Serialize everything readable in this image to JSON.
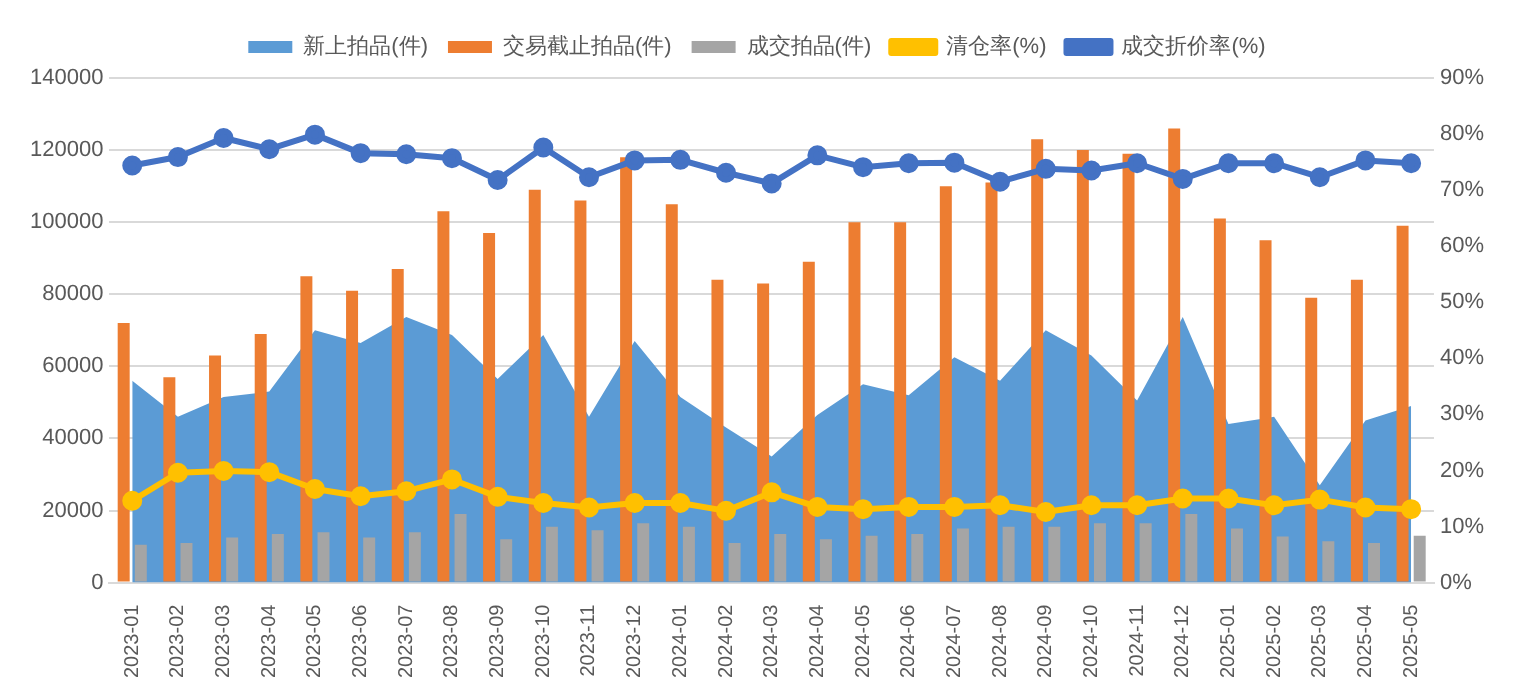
{
  "chart_data": {
    "type": "bar",
    "categories": [
      "2023-01",
      "2023-02",
      "2023-03",
      "2023-04",
      "2023-05",
      "2023-06",
      "2023-07",
      "2023-08",
      "2023-09",
      "2023-10",
      "2023-11",
      "2023-12",
      "2024-01",
      "2024-02",
      "2024-03",
      "2024-04",
      "2024-05",
      "2024-06",
      "2024-07",
      "2024-08",
      "2024-09",
      "2024-10",
      "2024-11",
      "2024-12",
      "2025-01",
      "2025-02",
      "2025-03",
      "2025-04",
      "2025-05"
    ],
    "series": [
      {
        "name": "新上拍品(件)",
        "type": "area",
        "color": "#5b9bd5",
        "marker": "none",
        "values": [
          56000,
          46000,
          51500,
          53000,
          70000,
          66500,
          73700,
          68700,
          56500,
          68700,
          46000,
          67000,
          51500,
          43000,
          35000,
          46500,
          55000,
          52000,
          62500,
          56000,
          70000,
          63000,
          50500,
          73700,
          44000,
          46000,
          27000,
          45000,
          49000
        ]
      },
      {
        "name": "交易截止拍品(件)",
        "color": "#ed7d31",
        "values": [
          72000,
          57000,
          63000,
          69000,
          85000,
          81000,
          87000,
          103000,
          97000,
          109000,
          106000,
          118000,
          105000,
          84000,
          83000,
          89000,
          100000,
          100000,
          110000,
          111000,
          123000,
          120000,
          119000,
          126000,
          101000,
          95000,
          79000,
          84000,
          99000
        ]
      },
      {
        "name": "成交拍品(件)",
        "color": "#a5a5a5",
        "values": [
          10500,
          11000,
          12500,
          13500,
          14000,
          12500,
          14000,
          19000,
          12000,
          15500,
          14500,
          16500,
          15500,
          11000,
          13500,
          12000,
          13000,
          13500,
          15000,
          15500,
          15500,
          16500,
          16500,
          19000,
          15000,
          12800,
          11500,
          11000,
          13000
        ]
      },
      {
        "name": "清仓率(%)",
        "type": "line",
        "axis": "y2",
        "color": "#ffc000",
        "marker": "circle",
        "values": [
          14.6,
          19.6,
          19.9,
          19.7,
          16.7,
          15.4,
          16.3,
          18.4,
          15.3,
          14.2,
          13.4,
          14.2,
          14.2,
          12.8,
          16.1,
          13.5,
          13.1,
          13.5,
          13.5,
          13.8,
          12.6,
          13.8,
          13.8,
          15,
          15,
          13.8,
          14.8,
          13.4,
          13.1
        ]
      },
      {
        "name": "成交折价率(%)",
        "type": "line",
        "axis": "y2",
        "color": "#4472c4",
        "marker": "circle",
        "values": [
          74.4,
          75.9,
          79.3,
          77.3,
          79.9,
          76.6,
          76.4,
          75.7,
          71.8,
          77.6,
          72.3,
          75.3,
          75.4,
          73.1,
          71.2,
          76.2,
          74.1,
          74.8,
          74.9,
          71.5,
          73.8,
          73.5,
          74.8,
          72,
          74.8,
          74.8,
          72.3,
          75.3,
          74.8
        ]
      }
    ],
    "ylim": [
      0,
      140000
    ],
    "yticks": [
      0,
      20000,
      40000,
      60000,
      80000,
      100000,
      120000,
      140000
    ],
    "y2lim": [
      0,
      90
    ],
    "y2ticks": [
      {
        "value": 0,
        "label": "0%"
      },
      {
        "value": 10,
        "label": "10%"
      },
      {
        "value": 20,
        "label": "20%"
      },
      {
        "value": 30,
        "label": "30%"
      },
      {
        "value": 40,
        "label": "40%"
      },
      {
        "value": 50,
        "label": "50%"
      },
      {
        "value": 60,
        "label": "60%"
      },
      {
        "value": 70,
        "label": "70%"
      },
      {
        "value": 80,
        "label": "80%"
      },
      {
        "value": 90,
        "label": "90%"
      }
    ],
    "grid": "y",
    "legend": "top"
  }
}
